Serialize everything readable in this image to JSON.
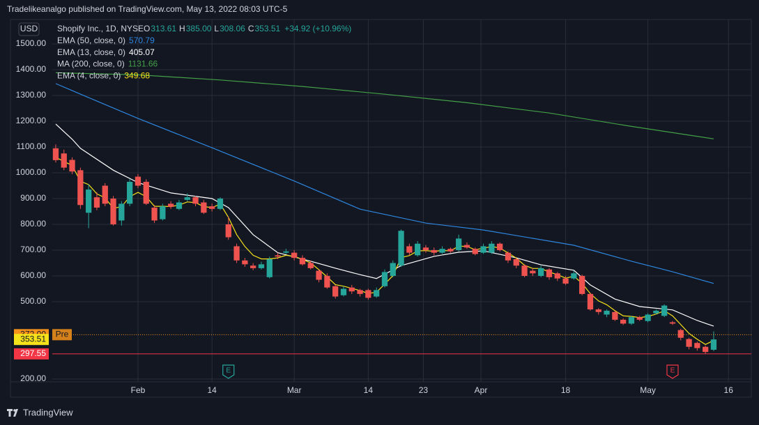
{
  "header": {
    "text": "Tradelikeanalgo published on TradingView.com, May 13, 2022 08:03 UTC-5"
  },
  "footer": {
    "brand": "TradingView"
  },
  "chart_data": {
    "type": "candlestick",
    "currency": "USD",
    "symbol": "Shopify Inc., 1D, NYSE",
    "ohlc_legend": [
      {
        "key": "O",
        "value": "313.61"
      },
      {
        "key": "H",
        "value": "385.00"
      },
      {
        "key": "L",
        "value": "308.06"
      },
      {
        "key": "C",
        "value": "353.51"
      }
    ],
    "change": "+34.92 (+10.96%)",
    "up_color": "#26a69a",
    "down_color": "#ef5350",
    "open": [
      1095,
      1075,
      1050,
      1010,
      845,
      905,
      950,
      900,
      815,
      880,
      985,
      965,
      865,
      820,
      880,
      860,
      895,
      905,
      885,
      870,
      860,
      800,
      715,
      660,
      640,
      630,
      595,
      680,
      690,
      690,
      670,
      650,
      620,
      600,
      560,
      525,
      555,
      545,
      545,
      520,
      560,
      600,
      640,
      715,
      680,
      710,
      700,
      690,
      705,
      700,
      720,
      705,
      690,
      690,
      725,
      690,
      665,
      640,
      620,
      600,
      625,
      610,
      590,
      590,
      600,
      530,
      470,
      450,
      460,
      430,
      415,
      440,
      425,
      455,
      445,
      420,
      390,
      355,
      340,
      325,
      313.61
    ],
    "high": [
      1110,
      1090,
      1060,
      1020,
      955,
      925,
      960,
      910,
      890,
      975,
      995,
      975,
      875,
      880,
      890,
      895,
      920,
      910,
      895,
      880,
      905,
      830,
      725,
      670,
      650,
      655,
      675,
      690,
      705,
      700,
      680,
      660,
      625,
      610,
      565,
      560,
      565,
      550,
      550,
      555,
      625,
      660,
      780,
      725,
      735,
      720,
      710,
      715,
      710,
      760,
      730,
      710,
      725,
      735,
      730,
      695,
      670,
      645,
      630,
      640,
      630,
      615,
      600,
      620,
      605,
      535,
      475,
      470,
      465,
      435,
      445,
      445,
      455,
      470,
      490,
      425,
      395,
      360,
      345,
      330,
      385
    ],
    "low": [
      1040,
      1010,
      995,
      860,
      785,
      855,
      870,
      795,
      795,
      870,
      940,
      875,
      805,
      815,
      860,
      855,
      890,
      870,
      840,
      850,
      855,
      740,
      650,
      635,
      622,
      625,
      590,
      665,
      685,
      660,
      640,
      625,
      575,
      550,
      512,
      520,
      530,
      520,
      508,
      515,
      555,
      595,
      635,
      680,
      675,
      690,
      680,
      685,
      690,
      695,
      705,
      680,
      685,
      685,
      695,
      650,
      630,
      595,
      600,
      595,
      585,
      580,
      565,
      585,
      525,
      465,
      450,
      440,
      425,
      410,
      410,
      425,
      420,
      450,
      440,
      410,
      350,
      315,
      310,
      298,
      308.06
    ],
    "close": [
      1049,
      1020,
      1005,
      875,
      935,
      865,
      880,
      800,
      880,
      965,
      950,
      880,
      815,
      870,
      868,
      885,
      905,
      880,
      845,
      860,
      900,
      750,
      660,
      645,
      630,
      645,
      665,
      675,
      695,
      670,
      645,
      630,
      585,
      555,
      520,
      550,
      540,
      530,
      515,
      545,
      615,
      650,
      775,
      690,
      725,
      700,
      690,
      705,
      695,
      745,
      710,
      685,
      715,
      725,
      700,
      660,
      640,
      600,
      610,
      630,
      595,
      590,
      570,
      610,
      530,
      470,
      460,
      465,
      430,
      415,
      440,
      430,
      450,
      465,
      485,
      415,
      360,
      325,
      320,
      305,
      353.51
    ],
    "indicators": [
      {
        "name": "EMA (50, close, 0)",
        "value_label": "570.79",
        "color": "#2e86de",
        "x": [
          0,
          5,
          10,
          19,
          29,
          37,
          45,
          52,
          63,
          70,
          75,
          80
        ],
        "values": [
          1346,
          1278,
          1211,
          1097,
          968,
          859,
          805,
          778,
          719,
          657,
          616,
          570.79
        ]
      },
      {
        "name": "EMA (13, close, 0)",
        "value_label": "405.07",
        "color": "#ffffff",
        "x": [
          0,
          2,
          3,
          7,
          10,
          14,
          19,
          21,
          24,
          27,
          31,
          34,
          37,
          39,
          42,
          46,
          49,
          52,
          56,
          59,
          63,
          65,
          68,
          71,
          75,
          78,
          80
        ],
        "values": [
          1189,
          1130,
          1095,
          1010,
          962,
          922,
          900,
          865,
          760,
          690,
          657,
          630,
          605,
          590,
          640,
          676,
          692,
          697,
          670,
          643,
          622,
          565,
          510,
          481,
          468,
          427,
          405.07
        ]
      },
      {
        "name": "MA (200, close, 0)",
        "value_label": "1131.66",
        "color": "#43a047",
        "x": [
          0,
          10,
          20,
          30,
          40,
          50,
          60,
          70,
          80
        ],
        "values": [
          1388,
          1380,
          1360,
          1335,
          1305,
          1272,
          1232,
          1180,
          1131.66
        ]
      },
      {
        "name": "EMA (4, close, 0)",
        "value_label": "349.68",
        "color": "#f5e21b",
        "values": [
          1060,
          1044,
          1028,
          967,
          954,
          918,
          903,
          862,
          869,
          907,
          924,
          907,
          870,
          870,
          869,
          875,
          887,
          884,
          869,
          865,
          879,
          827,
          760,
          714,
          680,
          666,
          666,
          670,
          680,
          676,
          664,
          650,
          624,
          596,
          566,
          560,
          552,
          543,
          532,
          537,
          568,
          601,
          671,
          679,
          697,
          698,
          695,
          699,
          697,
          716,
          714,
          702,
          707,
          714,
          708,
          689,
          669,
          641,
          629,
          629,
          615,
          605,
          591,
          599,
          571,
          531,
          503,
          488,
          465,
          445,
          443,
          438,
          443,
          452,
          465,
          445,
          411,
          377,
          354,
          334,
          349.68
        ]
      }
    ],
    "xlim": [
      -0.42,
      84.58
    ],
    "xticks": [
      {
        "value": 10,
        "label": "Feb"
      },
      {
        "value": 19,
        "label": "14"
      },
      {
        "value": 29,
        "label": "Mar"
      },
      {
        "value": 38,
        "label": "14"
      },
      {
        "value": 44.7,
        "label": "23"
      },
      {
        "value": 51.7,
        "label": "Apr"
      },
      {
        "value": 62,
        "label": "18"
      },
      {
        "value": 72,
        "label": "May"
      },
      {
        "value": 81.8,
        "label": "16"
      }
    ],
    "ylim": [
      189.2,
      1594.6
    ],
    "yticks": [
      {
        "value": 200,
        "label": "200.00"
      },
      {
        "value": 500,
        "label": "500.00"
      },
      {
        "value": 600,
        "label": "600.00"
      },
      {
        "value": 700,
        "label": "700.00"
      },
      {
        "value": 800,
        "label": "800.00"
      },
      {
        "value": 900,
        "label": "900.00"
      },
      {
        "value": 1000,
        "label": "1000.00"
      },
      {
        "value": 1100,
        "label": "1100.00"
      },
      {
        "value": 1200,
        "label": "1200.00"
      },
      {
        "value": 1300,
        "label": "1300.00"
      },
      {
        "value": 1400,
        "label": "1400.00"
      },
      {
        "value": 1500,
        "label": "1500.00"
      }
    ],
    "grid": true,
    "price_markers": [
      {
        "value": 372,
        "label": "372.00",
        "tag": "Pre",
        "color": "#f7931a",
        "line": "dotted"
      },
      {
        "value": 353.51,
        "label": "353.51",
        "color": "#f5e21b"
      },
      {
        "value": 297.55,
        "label": "297.55",
        "color": "#f23645",
        "line": "solid"
      }
    ],
    "events": [
      {
        "x": 21,
        "label": "E",
        "color": "#26a69a"
      },
      {
        "x": 75,
        "label": "E",
        "color": "#f23645"
      }
    ]
  }
}
